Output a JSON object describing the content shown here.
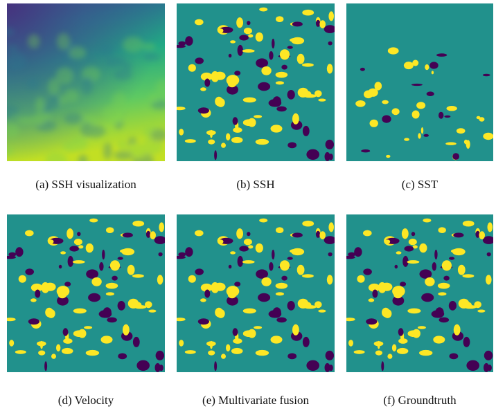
{
  "panels": [
    {
      "caption": "(a) SSH visualization"
    },
    {
      "caption": "(b) SSH"
    },
    {
      "caption": "(c) SST"
    },
    {
      "caption": "(d) Velocity"
    },
    {
      "caption": "(e) Multivariate fusion"
    },
    {
      "caption": "(f) Groundtruth"
    }
  ]
}
